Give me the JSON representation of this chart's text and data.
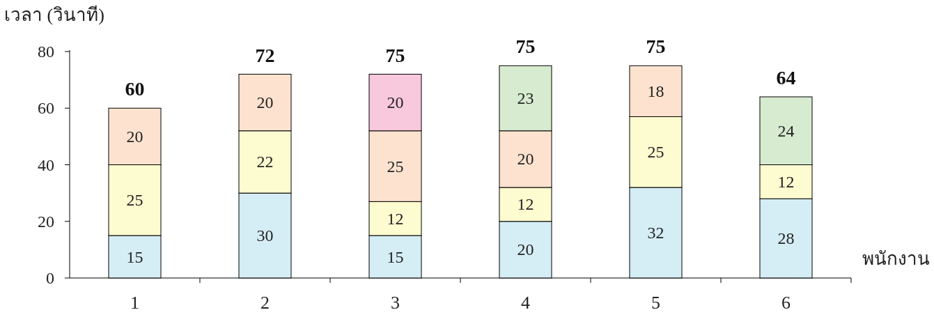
{
  "chart_data": {
    "type": "bar",
    "stacked": true,
    "ylabel": "เวลา (วินาที)",
    "xlabel": "พนักงาน",
    "categories": [
      "1",
      "2",
      "3",
      "4",
      "5",
      "6"
    ],
    "series": [
      {
        "color": "#d5edf5",
        "values": [
          15,
          30,
          15,
          20,
          32,
          28
        ]
      },
      {
        "color": "#fdfbd0",
        "values": [
          25,
          22,
          12,
          12,
          25,
          12
        ]
      },
      {
        "color": "#fde3cf",
        "values": [
          20,
          20,
          25,
          20,
          18,
          null
        ]
      },
      {
        "color": "#f8c8dc",
        "values": [
          null,
          null,
          20,
          null,
          null,
          null
        ]
      },
      {
        "color": "#d6ebcf",
        "values": [
          null,
          null,
          null,
          23,
          null,
          24
        ]
      }
    ],
    "ylim": [
      0,
      80
    ],
    "yticks": [
      0,
      20,
      40,
      60,
      80
    ],
    "data_labels": true,
    "totals": [
      "60",
      "72",
      "75",
      "75",
      "75",
      "64"
    ],
    "grid": false
  }
}
